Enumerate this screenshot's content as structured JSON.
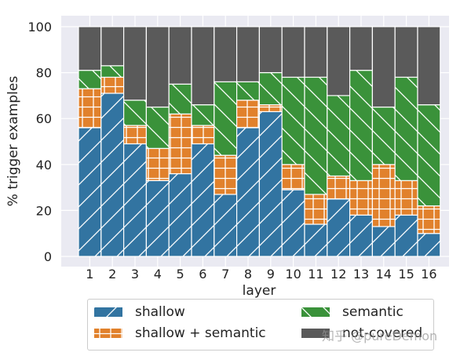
{
  "chart_data": {
    "type": "bar",
    "stacked": true,
    "title": "",
    "xlabel": "layer",
    "ylabel": "% trigger examples",
    "ylim": [
      0,
      100
    ],
    "yticks": [
      0,
      20,
      40,
      60,
      80,
      100
    ],
    "grid": true,
    "legend_position": "bottom",
    "categories": [
      "1",
      "2",
      "3",
      "4",
      "5",
      "6",
      "7",
      "8",
      "9",
      "10",
      "11",
      "12",
      "13",
      "14",
      "15",
      "16"
    ],
    "series": [
      {
        "name": "shallow",
        "color": "#3274a1",
        "hatch": "/",
        "values": [
          56,
          71,
          49,
          33,
          36,
          49,
          27,
          56,
          63,
          29,
          14,
          25,
          18,
          13,
          18,
          10
        ]
      },
      {
        "name": "shallow + semantic",
        "color": "#e1812c",
        "hatch": "+",
        "values": [
          17,
          7,
          8,
          14,
          26,
          8,
          17,
          12,
          3,
          11,
          13,
          10,
          15,
          27,
          15,
          12
        ]
      },
      {
        "name": "semantic",
        "color": "#3a923a",
        "hatch": "\\",
        "values": [
          8,
          5,
          11,
          18,
          13,
          9,
          32,
          8,
          14,
          38,
          51,
          35,
          48,
          25,
          45,
          44
        ]
      },
      {
        "name": "not-covered",
        "color": "#5a5a5a",
        "hatch": "",
        "values": [
          19,
          17,
          32,
          35,
          25,
          34,
          24,
          24,
          20,
          22,
          22,
          30,
          19,
          35,
          22,
          34
        ]
      }
    ]
  },
  "legend": {
    "items": [
      {
        "label": "shallow"
      },
      {
        "label": "shallow + semantic"
      },
      {
        "label": "semantic"
      },
      {
        "label": "not-covered"
      }
    ]
  },
  "watermark": "知乎 @pureDemon"
}
